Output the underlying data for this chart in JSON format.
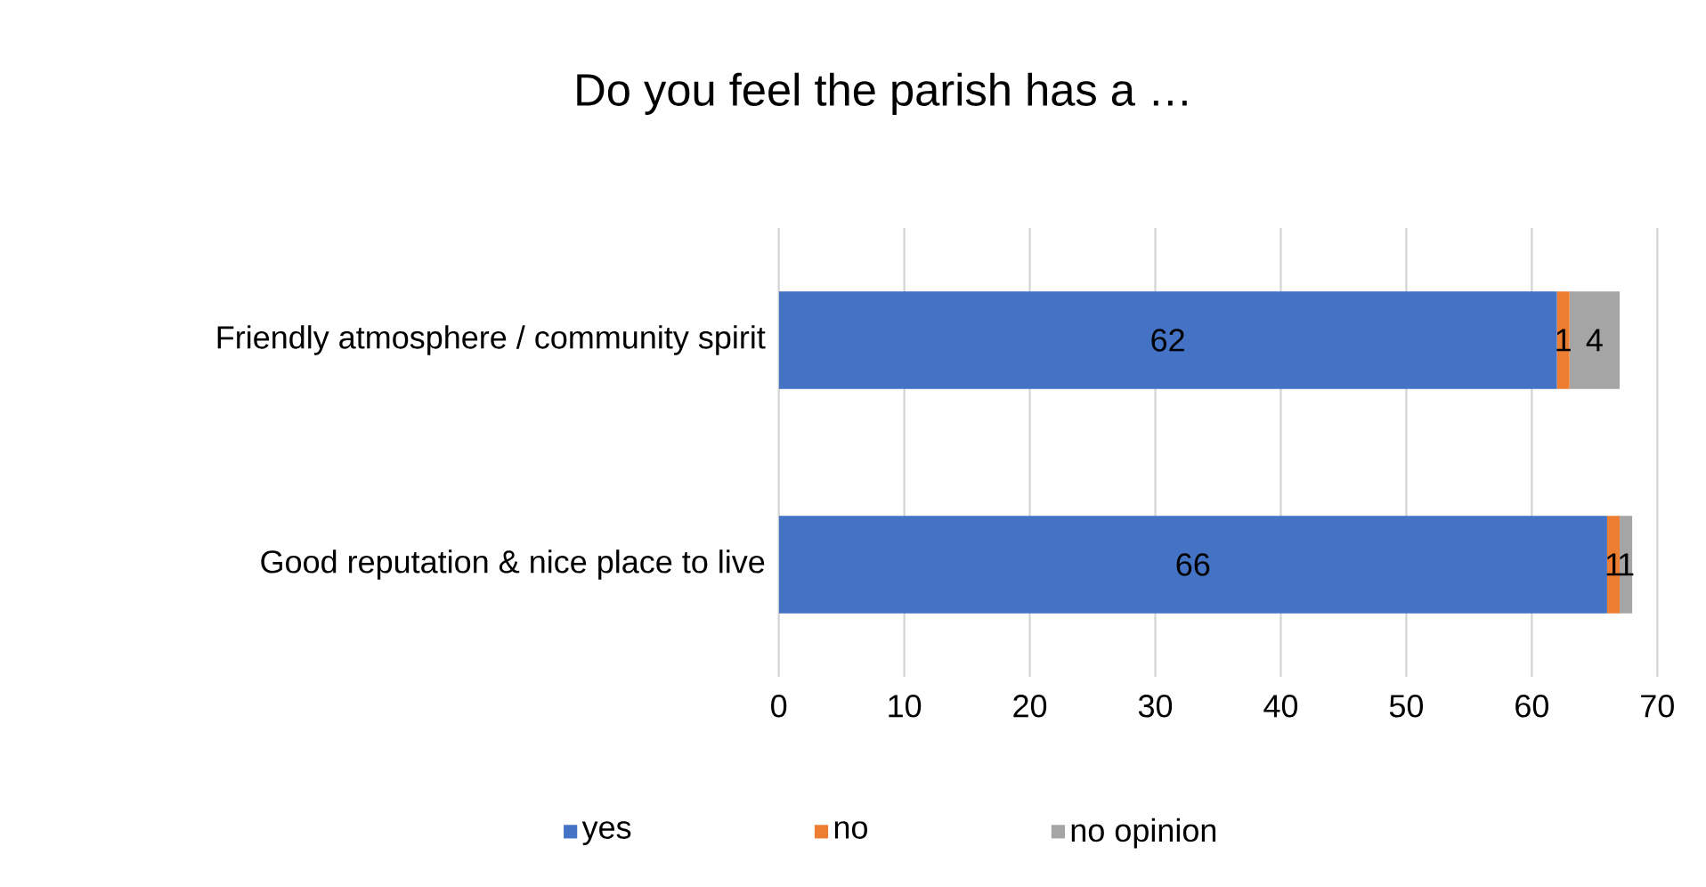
{
  "chart_data": {
    "type": "bar",
    "title": "Do you feel the parish has a …",
    "orientation": "horizontal",
    "stacked": true,
    "categories": [
      "Friendly atmosphere / community spirit",
      "Good reputation & nice place to live"
    ],
    "series": [
      {
        "name": "yes",
        "color": "#4472c4",
        "values": [
          62,
          66
        ]
      },
      {
        "name": "no",
        "color": "#ed7d31",
        "values": [
          1,
          1
        ]
      },
      {
        "name": "no opinion",
        "color": "#a5a5a5",
        "values": [
          4,
          1
        ]
      }
    ],
    "xlim": [
      0,
      70
    ],
    "xticks": [
      0,
      10,
      20,
      30,
      40,
      50,
      60,
      70
    ],
    "grid": "x",
    "legend": "bottom",
    "data_labels": true
  }
}
